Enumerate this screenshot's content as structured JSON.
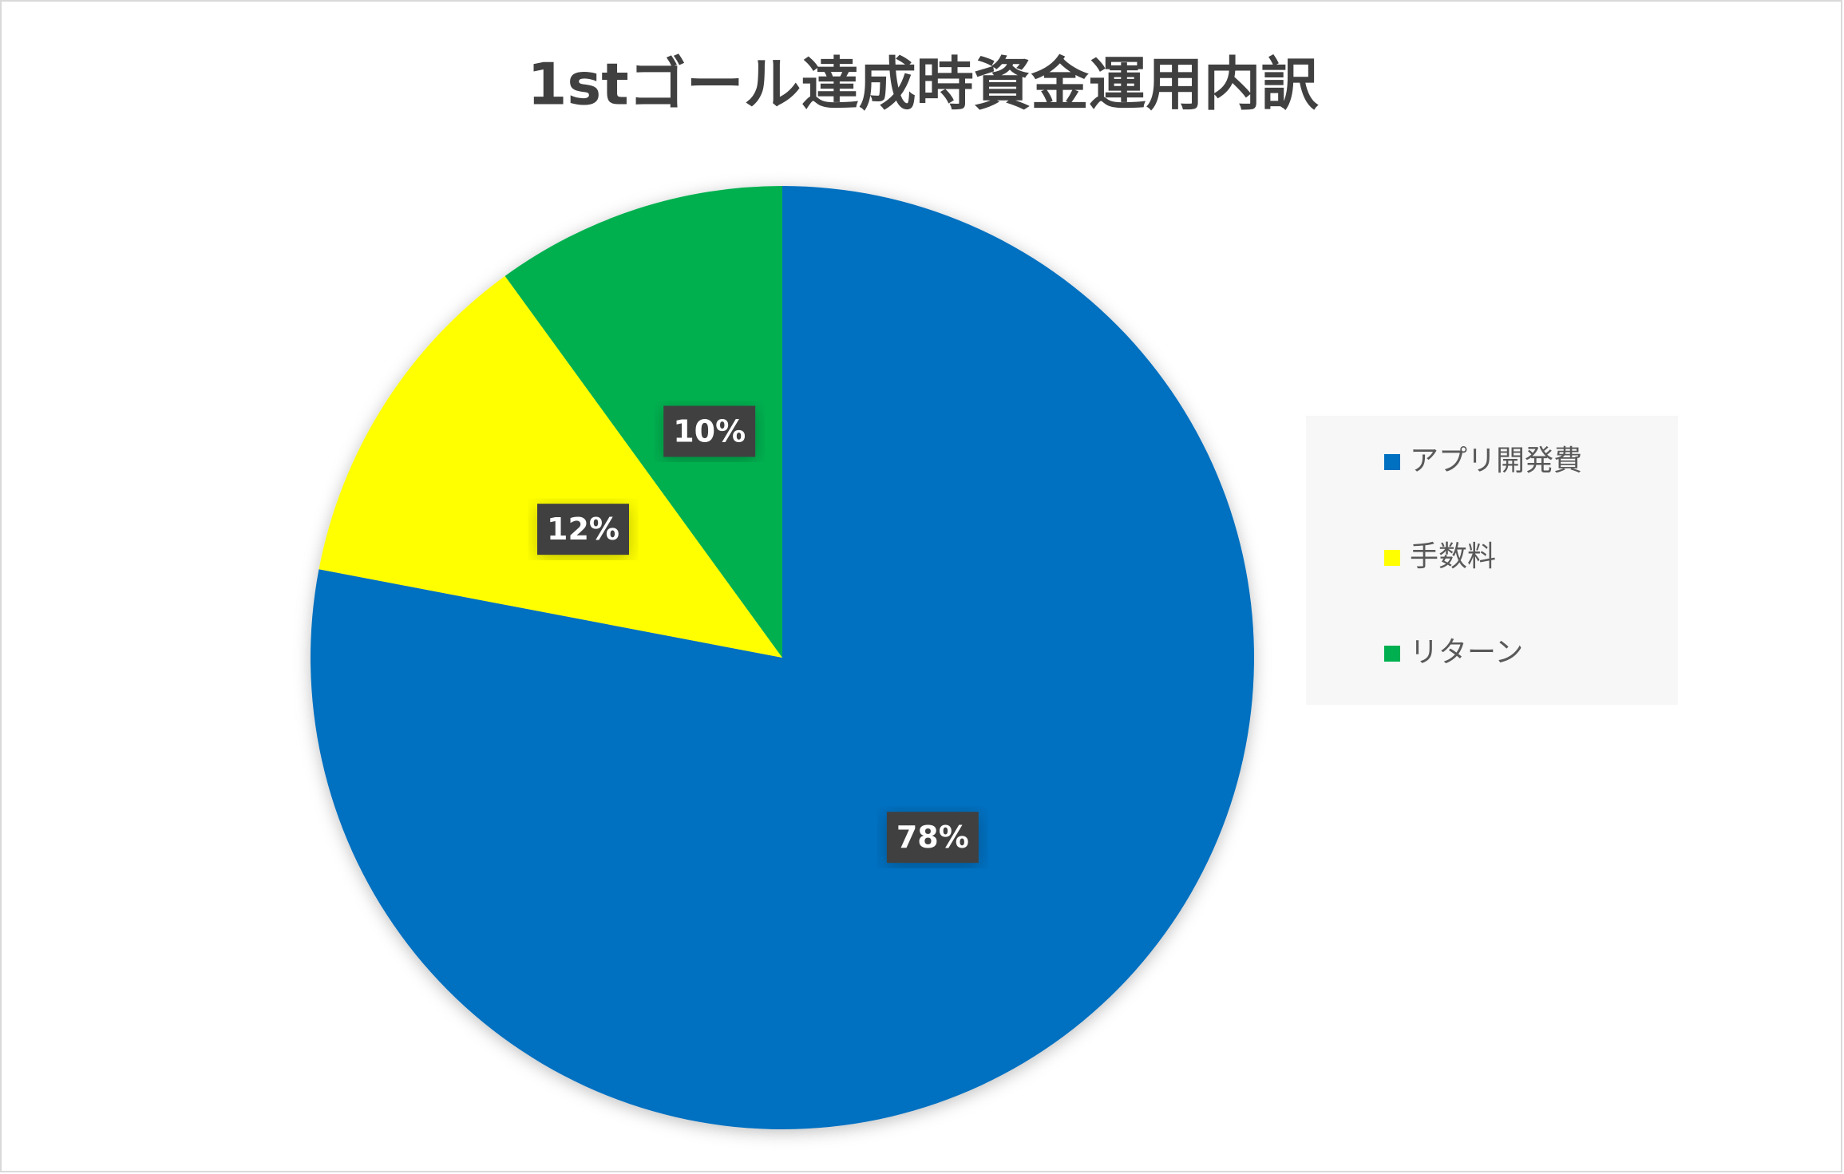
{
  "chart_data": {
    "type": "pie",
    "title": "1stゴール達成時資金運用内訳",
    "categories": [
      "アプリ開発費",
      "手数料",
      "リターン"
    ],
    "values": [
      78,
      12,
      10
    ],
    "value_labels": [
      "78%",
      "12%",
      "10%"
    ],
    "colors": [
      "#0070c0",
      "#ffff00",
      "#00b050"
    ],
    "legend": "right"
  }
}
